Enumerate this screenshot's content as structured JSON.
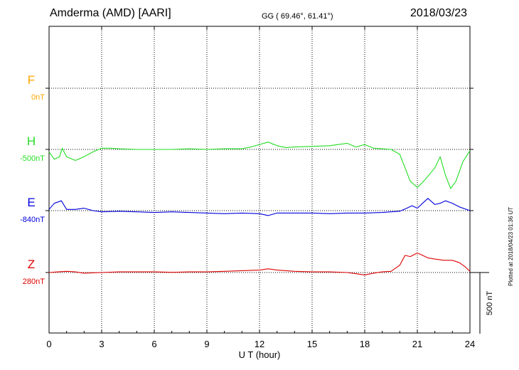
{
  "header": {
    "title": "Amderma (AMD)  [AARI]",
    "coords": "GG ( 69.46°,  61.41°)",
    "date": "2018/03/23"
  },
  "footer": {
    "plotted": "Plotted at 2018/04/23 01:36 UT"
  },
  "chart_data": {
    "type": "line",
    "xlabel": "U T (hour)",
    "xlim": [
      0,
      24
    ],
    "xticks": [
      "0",
      "3",
      "6",
      "9",
      "12",
      "15",
      "18",
      "21",
      "24"
    ],
    "scale_label": "500 nT",
    "grid": true,
    "series": [
      {
        "name": "F",
        "baseline": "0nT",
        "color": "#ffa500",
        "points": []
      },
      {
        "name": "H",
        "baseline": "-500nT",
        "color": "#22dd22",
        "points": [
          [
            0,
            -520
          ],
          [
            0.3,
            -580
          ],
          [
            0.6,
            -560
          ],
          [
            0.75,
            -490
          ],
          [
            1.0,
            -560
          ],
          [
            1.5,
            -590
          ],
          [
            2.0,
            -560
          ],
          [
            2.5,
            -520
          ],
          [
            3.0,
            -490
          ],
          [
            3.5,
            -490
          ],
          [
            4,
            -495
          ],
          [
            5,
            -500
          ],
          [
            6,
            -500
          ],
          [
            7,
            -500
          ],
          [
            8,
            -495
          ],
          [
            9,
            -500
          ],
          [
            10,
            -495
          ],
          [
            11,
            -495
          ],
          [
            11.5,
            -480
          ],
          [
            12,
            -460
          ],
          [
            12.5,
            -440
          ],
          [
            13,
            -470
          ],
          [
            13.5,
            -485
          ],
          [
            14,
            -480
          ],
          [
            15,
            -475
          ],
          [
            16,
            -470
          ],
          [
            16.5,
            -460
          ],
          [
            17,
            -450
          ],
          [
            17.5,
            -480
          ],
          [
            18,
            -460
          ],
          [
            18.5,
            -490
          ],
          [
            19,
            -495
          ],
          [
            19.5,
            -500
          ],
          [
            20,
            -540
          ],
          [
            20.3,
            -650
          ],
          [
            20.6,
            -760
          ],
          [
            21,
            -810
          ],
          [
            21.3,
            -770
          ],
          [
            21.6,
            -720
          ],
          [
            22,
            -650
          ],
          [
            22.3,
            -560
          ],
          [
            22.6,
            -710
          ],
          [
            22.9,
            -820
          ],
          [
            23.2,
            -760
          ],
          [
            23.6,
            -600
          ],
          [
            24,
            -510
          ]
        ]
      },
      {
        "name": "E",
        "baseline": "-840nT",
        "color": "#0000dd",
        "points": [
          [
            0,
            -830
          ],
          [
            0.3,
            -780
          ],
          [
            0.7,
            -760
          ],
          [
            1.0,
            -830
          ],
          [
            1.5,
            -830
          ],
          [
            2,
            -820
          ],
          [
            2.5,
            -840
          ],
          [
            3,
            -850
          ],
          [
            4,
            -845
          ],
          [
            5,
            -850
          ],
          [
            6,
            -855
          ],
          [
            7,
            -850
          ],
          [
            8,
            -855
          ],
          [
            9,
            -860
          ],
          [
            10,
            -865
          ],
          [
            11,
            -860
          ],
          [
            12,
            -865
          ],
          [
            12.5,
            -880
          ],
          [
            13,
            -860
          ],
          [
            14,
            -860
          ],
          [
            15,
            -860
          ],
          [
            16,
            -865
          ],
          [
            17,
            -860
          ],
          [
            18,
            -860
          ],
          [
            19,
            -855
          ],
          [
            19.5,
            -850
          ],
          [
            20,
            -845
          ],
          [
            20.4,
            -820
          ],
          [
            20.7,
            -800
          ],
          [
            21,
            -820
          ],
          [
            21.3,
            -780
          ],
          [
            21.6,
            -740
          ],
          [
            22,
            -790
          ],
          [
            22.3,
            -780
          ],
          [
            22.6,
            -760
          ],
          [
            23,
            -780
          ],
          [
            23.4,
            -810
          ],
          [
            24,
            -840
          ]
        ]
      },
      {
        "name": "Z",
        "baseline": "280nT",
        "color": "#dd0000",
        "points": [
          [
            0,
            280
          ],
          [
            0.5,
            285
          ],
          [
            1,
            290
          ],
          [
            1.5,
            285
          ],
          [
            2,
            275
          ],
          [
            3,
            280
          ],
          [
            4,
            285
          ],
          [
            5,
            285
          ],
          [
            6,
            285
          ],
          [
            7,
            282
          ],
          [
            8,
            285
          ],
          [
            9,
            285
          ],
          [
            10,
            290
          ],
          [
            11,
            295
          ],
          [
            12,
            300
          ],
          [
            12.5,
            310
          ],
          [
            13,
            300
          ],
          [
            14,
            290
          ],
          [
            15,
            285
          ],
          [
            16,
            285
          ],
          [
            17,
            280
          ],
          [
            17.5,
            270
          ],
          [
            18,
            260
          ],
          [
            18.5,
            275
          ],
          [
            19,
            285
          ],
          [
            19.5,
            290
          ],
          [
            20,
            340
          ],
          [
            20.3,
            420
          ],
          [
            20.6,
            410
          ],
          [
            21,
            440
          ],
          [
            21.3,
            420
          ],
          [
            21.6,
            400
          ],
          [
            22,
            390
          ],
          [
            22.5,
            380
          ],
          [
            23,
            380
          ],
          [
            23.4,
            360
          ],
          [
            23.7,
            330
          ],
          [
            24,
            290
          ]
        ]
      }
    ]
  }
}
